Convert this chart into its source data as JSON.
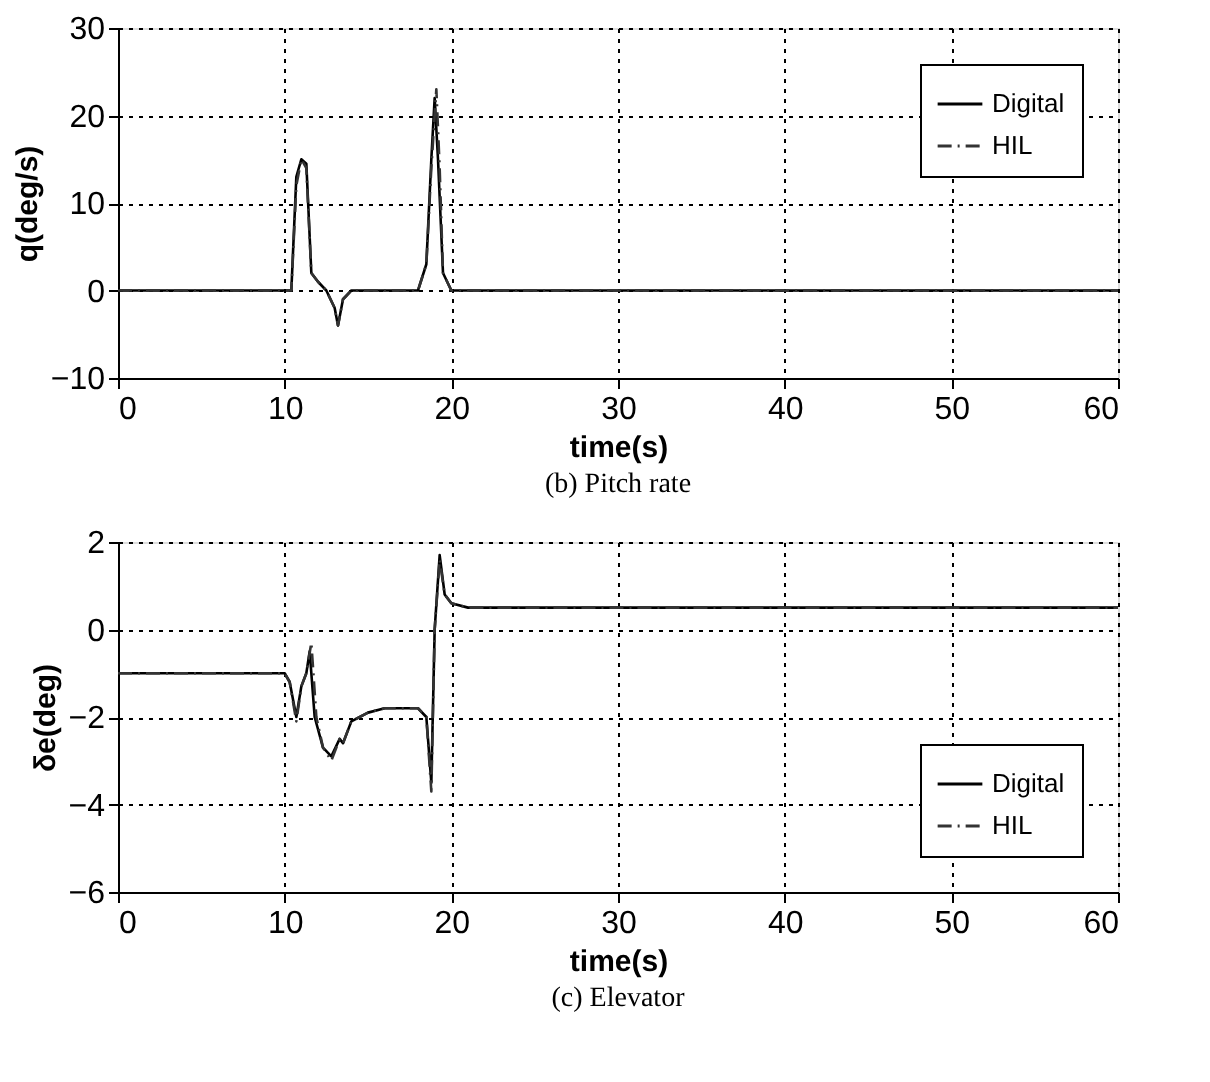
{
  "chart_data": [
    {
      "type": "line",
      "xlabel": "time(s)",
      "ylabel": "q(deg/s)",
      "annotations": [
        "(b) Pitch rate"
      ],
      "xlim": [
        0,
        60
      ],
      "ylim": [
        -10,
        30
      ],
      "xticks": [
        0,
        10,
        20,
        30,
        40,
        50,
        60
      ],
      "yticks": [
        -10,
        0,
        10,
        20,
        30
      ],
      "grid": true,
      "legend": "top right",
      "series": [
        {
          "name": "Digital",
          "color": "#000000",
          "line_style": "solid",
          "x": [
            0,
            10.4,
            10.7,
            11,
            11.3,
            11.6,
            12,
            12.5,
            13,
            13.2,
            13.5,
            14,
            18,
            18.5,
            18.8,
            19,
            19.2,
            19.5,
            20,
            60
          ],
          "values": [
            0,
            0,
            13,
            15,
            14.5,
            2,
            1,
            0,
            -2,
            -4,
            -1,
            0,
            0,
            3,
            15,
            22,
            15,
            2,
            0,
            0
          ]
        },
        {
          "name": "HIL",
          "color": "#333333",
          "line_style": "dashdot",
          "x": [
            0,
            10.4,
            10.7,
            11,
            11.3,
            11.6,
            12,
            12.5,
            13,
            13.2,
            13.5,
            14,
            18,
            18.5,
            18.8,
            19.1,
            19.3,
            19.5,
            20,
            60
          ],
          "values": [
            0,
            0,
            12,
            15,
            14,
            2,
            1,
            0,
            -2,
            -4,
            -1,
            0,
            0,
            3,
            14,
            23,
            14,
            2,
            0,
            0
          ]
        }
      ]
    },
    {
      "type": "line",
      "xlabel": "time(s)",
      "ylabel": "δe(deg)",
      "annotations": [
        "(c) Elevator"
      ],
      "xlim": [
        0,
        60
      ],
      "ylim": [
        -6,
        2
      ],
      "xticks": [
        0,
        10,
        20,
        30,
        40,
        50,
        60
      ],
      "yticks": [
        -6,
        -4,
        -2,
        0,
        2
      ],
      "grid": true,
      "legend": "bottom right",
      "series": [
        {
          "name": "Digital",
          "color": "#000000",
          "line_style": "solid",
          "x": [
            0,
            10,
            10.3,
            10.7,
            11,
            11.3,
            11.5,
            11.8,
            12.3,
            12.8,
            13.3,
            13.5,
            14,
            15,
            16,
            18,
            18.5,
            18.8,
            19,
            19.3,
            19.6,
            20,
            21,
            60
          ],
          "values": [
            -1,
            -1,
            -1.2,
            -2,
            -1.3,
            -1,
            -0.5,
            -2,
            -2.7,
            -2.9,
            -2.5,
            -2.6,
            -2.1,
            -1.9,
            -1.8,
            -1.8,
            -2,
            -3.5,
            0,
            1.7,
            0.8,
            0.6,
            0.5,
            0.5
          ]
        },
        {
          "name": "HIL",
          "color": "#333333",
          "line_style": "dashdot",
          "x": [
            0,
            10,
            10.3,
            10.7,
            11,
            11.3,
            11.6,
            11.9,
            12.3,
            12.8,
            13.3,
            13.5,
            14,
            15,
            16,
            18,
            18.5,
            18.8,
            19,
            19.3,
            19.6,
            20,
            21,
            60
          ],
          "values": [
            -1,
            -1,
            -1.2,
            -2.1,
            -1.3,
            -1,
            -0.3,
            -2,
            -2.7,
            -3,
            -2.5,
            -2.6,
            -2.1,
            -1.9,
            -1.8,
            -1.8,
            -2,
            -3.7,
            0,
            1.6,
            0.8,
            0.6,
            0.5,
            0.5
          ]
        }
      ]
    }
  ]
}
